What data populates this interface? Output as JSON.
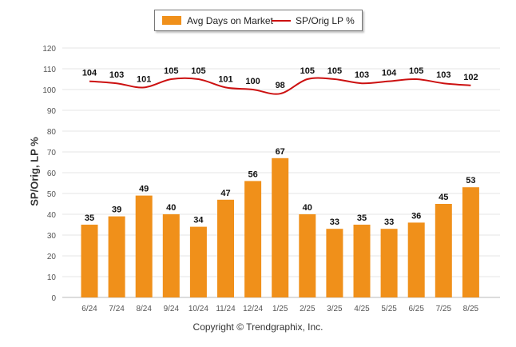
{
  "chart_data": {
    "type": "bar",
    "categories": [
      "6/24",
      "7/24",
      "8/24",
      "9/24",
      "10/24",
      "11/24",
      "12/24",
      "1/25",
      "2/25",
      "3/25",
      "4/25",
      "5/25",
      "6/25",
      "7/25",
      "8/25"
    ],
    "series": [
      {
        "name": "Avg Days on Market",
        "type": "bar",
        "color": "#f0901a",
        "values": [
          35,
          39,
          49,
          40,
          34,
          47,
          56,
          67,
          40,
          33,
          35,
          33,
          36,
          45,
          53
        ]
      },
      {
        "name": "SP/Orig LP %",
        "type": "line",
        "color": "#cc1010",
        "values": [
          104,
          103,
          101,
          105,
          105,
          101,
          100,
          98,
          105,
          105,
          103,
          104,
          105,
          103,
          102
        ]
      }
    ],
    "ylabel": "SP/Orig, LP %",
    "ylim": [
      0,
      120
    ],
    "yticks": [
      0,
      10,
      20,
      30,
      40,
      50,
      60,
      70,
      80,
      90,
      100,
      110,
      120
    ],
    "grid": true,
    "legend": "top-center"
  },
  "legend": {
    "bar_label": "Avg Days on Market",
    "line_label": "SP/Orig LP %"
  },
  "credit": "Copyright © Trendgraphix, Inc."
}
